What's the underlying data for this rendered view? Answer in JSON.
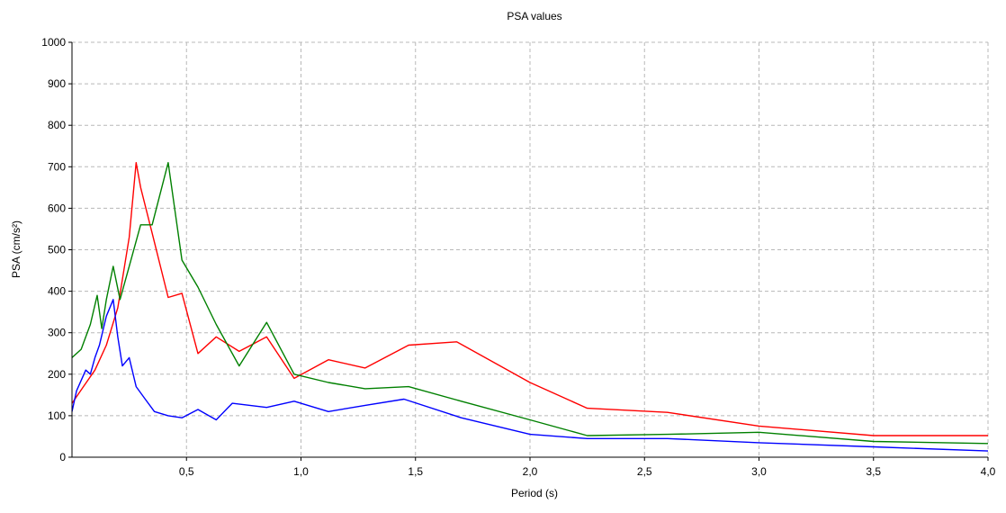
{
  "chart_data": {
    "type": "line",
    "title": "PSA values",
    "xlabel": "Period (s)",
    "ylabel": "PSA (cm/s²)",
    "xlim": [
      0,
      4.0
    ],
    "ylim": [
      0,
      1000
    ],
    "grid": true,
    "x_ticks": [
      0.5,
      1.0,
      1.5,
      2.0,
      2.5,
      3.0,
      3.5,
      4.0
    ],
    "x_tick_labels": [
      "0,5",
      "1,0",
      "1,5",
      "2,0",
      "2,5",
      "3,0",
      "3,5",
      "4,0"
    ],
    "y_ticks": [
      0,
      100,
      200,
      300,
      400,
      500,
      600,
      700,
      800,
      900,
      1000
    ],
    "y_tick_labels": [
      "0",
      "100",
      "200",
      "300",
      "400",
      "500",
      "600",
      "700",
      "800",
      "900",
      "1000"
    ],
    "series": [
      {
        "color": "#ff0000",
        "x": [
          0.0,
          0.05,
          0.1,
          0.15,
          0.2,
          0.25,
          0.28,
          0.3,
          0.35,
          0.42,
          0.48,
          0.55,
          0.63,
          0.73,
          0.85,
          0.97,
          1.12,
          1.28,
          1.47,
          1.68,
          2.0,
          2.25,
          2.6,
          3.0,
          3.5,
          4.0
        ],
        "y": [
          130,
          170,
          210,
          270,
          360,
          530,
          710,
          650,
          540,
          385,
          395,
          250,
          290,
          255,
          290,
          190,
          235,
          215,
          270,
          278,
          180,
          118,
          108,
          75,
          52,
          52
        ]
      },
      {
        "color": "#008000",
        "x": [
          0.0,
          0.04,
          0.08,
          0.11,
          0.13,
          0.15,
          0.18,
          0.21,
          0.25,
          0.3,
          0.35,
          0.42,
          0.48,
          0.55,
          0.63,
          0.73,
          0.85,
          0.97,
          1.12,
          1.28,
          1.47,
          1.7,
          2.0,
          2.25,
          2.6,
          3.0,
          3.5,
          4.0
        ],
        "y": [
          240,
          260,
          320,
          390,
          310,
          380,
          460,
          380,
          460,
          560,
          560,
          710,
          475,
          410,
          320,
          220,
          325,
          200,
          180,
          165,
          170,
          135,
          90,
          52,
          55,
          60,
          38,
          33
        ]
      },
      {
        "color": "#0000ff",
        "x": [
          0.0,
          0.02,
          0.04,
          0.06,
          0.08,
          0.1,
          0.12,
          0.15,
          0.18,
          0.2,
          0.22,
          0.25,
          0.28,
          0.32,
          0.36,
          0.42,
          0.48,
          0.55,
          0.63,
          0.7,
          0.85,
          0.97,
          1.12,
          1.28,
          1.45,
          1.7,
          2.0,
          2.25,
          2.6,
          3.0,
          3.5,
          4.0
        ],
        "y": [
          110,
          160,
          185,
          210,
          200,
          240,
          270,
          340,
          380,
          290,
          220,
          240,
          170,
          140,
          110,
          100,
          95,
          115,
          90,
          130,
          120,
          135,
          110,
          125,
          140,
          95,
          55,
          45,
          45,
          35,
          25,
          15
        ]
      }
    ]
  }
}
